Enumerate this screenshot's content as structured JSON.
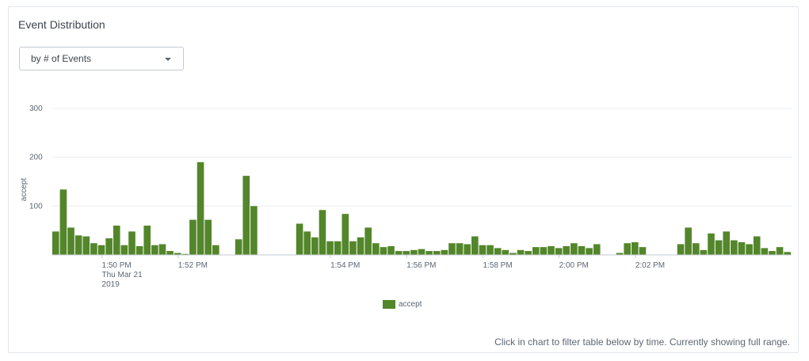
{
  "panel": {
    "title": "Event Distribution",
    "dropdown": {
      "selected": "by # of Events"
    },
    "footer_note": "Click in chart to filter table below by time. Currently showing full range."
  },
  "chart_data": {
    "type": "bar",
    "ylabel": "accept",
    "ylim": [
      0,
      300
    ],
    "yticks": [
      100,
      200,
      300
    ],
    "grid": true,
    "legend": {
      "placement": "bottom",
      "entries": [
        "accept"
      ]
    },
    "series": [
      {
        "name": "accept",
        "color": "#53862a",
        "values": [
          48,
          134,
          56,
          40,
          38,
          24,
          20,
          34,
          60,
          20,
          48,
          18,
          60,
          20,
          22,
          8,
          4,
          2,
          72,
          190,
          72,
          20,
          0,
          0,
          32,
          162,
          100,
          0,
          0,
          0,
          0,
          0,
          64,
          48,
          36,
          92,
          28,
          28,
          84,
          28,
          36,
          56,
          24,
          16,
          18,
          8,
          8,
          10,
          12,
          8,
          8,
          10,
          24,
          24,
          22,
          38,
          20,
          20,
          14,
          10,
          4,
          10,
          8,
          16,
          16,
          18,
          14,
          18,
          24,
          18,
          14,
          22,
          0,
          0,
          4,
          24,
          26,
          16,
          0,
          0,
          0,
          0,
          22,
          56,
          24,
          10,
          44,
          30,
          48,
          30,
          26,
          22,
          38,
          14,
          8,
          16,
          6
        ]
      }
    ],
    "x_tick_labels": [
      {
        "index": 6.5,
        "lines": [
          "1:50 PM",
          "Thu Mar 21",
          "2019"
        ]
      },
      {
        "index": 16.5,
        "lines": [
          "1:52 PM"
        ]
      },
      {
        "index": 36.5,
        "lines": [
          "1:54 PM"
        ]
      },
      {
        "index": 46.5,
        "lines": [
          "1:56 PM"
        ]
      },
      {
        "index": 56.5,
        "lines": [
          "1:58 PM"
        ]
      },
      {
        "index": 66.5,
        "lines": [
          "2:00 PM"
        ]
      },
      {
        "index": 76.5,
        "lines": [
          "2:02 PM"
        ]
      }
    ]
  }
}
